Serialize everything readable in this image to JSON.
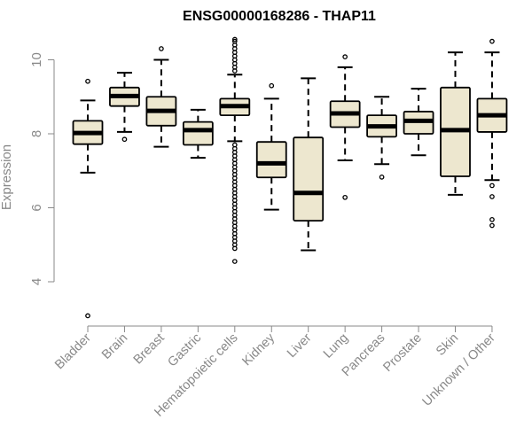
{
  "chart_data": {
    "type": "box",
    "title": "ENSG00000168286 - THAP11",
    "xlabel": "",
    "ylabel": "Expression",
    "ylim": [
      3,
      10.7
    ],
    "yticks": [
      4,
      6,
      8,
      10
    ],
    "grid": false,
    "colors": {
      "box_fill": "#EDE7CF",
      "stroke": "#000000",
      "axis_text": "#888888"
    },
    "categories": [
      "Bladder",
      "Brain",
      "Breast",
      "Gastric",
      "Hematopoietic cells",
      "Kidney",
      "Liver",
      "Lung",
      "Pancreas",
      "Prostate",
      "Skin",
      "Unknown / Other"
    ],
    "boxes": [
      {
        "category": "Bladder",
        "min": 6.95,
        "q1": 7.72,
        "median": 8.02,
        "q3": 8.35,
        "max": 8.9,
        "outliers": [
          9.42,
          3.08
        ]
      },
      {
        "category": "Brain",
        "min": 8.05,
        "q1": 8.75,
        "median": 9.02,
        "q3": 9.25,
        "max": 9.65,
        "outliers": [
          7.85
        ]
      },
      {
        "category": "Breast",
        "min": 7.65,
        "q1": 8.22,
        "median": 8.62,
        "q3": 9.0,
        "max": 10.0,
        "outliers": [
          10.3
        ]
      },
      {
        "category": "Gastric",
        "min": 7.35,
        "q1": 7.7,
        "median": 8.1,
        "q3": 8.32,
        "max": 8.65,
        "outliers": []
      },
      {
        "category": "Hematopoietic cells",
        "min": 7.8,
        "q1": 8.5,
        "median": 8.75,
        "q3": 8.95,
        "max": 9.6,
        "outliers": [
          9.7,
          9.8,
          9.9,
          10.0,
          10.1,
          10.2,
          10.3,
          10.4,
          10.5,
          10.55,
          7.7,
          7.6,
          7.5,
          7.4,
          7.3,
          7.2,
          7.1,
          7.0,
          6.9,
          6.8,
          6.7,
          6.6,
          6.5,
          6.4,
          6.3,
          6.2,
          6.1,
          6.0,
          5.9,
          5.8,
          5.7,
          5.6,
          5.5,
          5.4,
          5.3,
          5.2,
          5.1,
          5.0,
          4.9,
          4.55
        ]
      },
      {
        "category": "Kidney",
        "min": 5.95,
        "q1": 6.82,
        "median": 7.2,
        "q3": 7.78,
        "max": 8.95,
        "outliers": [
          9.3
        ]
      },
      {
        "category": "Liver",
        "min": 4.85,
        "q1": 5.65,
        "median": 6.4,
        "q3": 7.9,
        "max": 9.5,
        "outliers": []
      },
      {
        "category": "Lung",
        "min": 7.28,
        "q1": 8.18,
        "median": 8.55,
        "q3": 8.88,
        "max": 9.8,
        "outliers": [
          10.08,
          6.28
        ]
      },
      {
        "category": "Pancreas",
        "min": 7.18,
        "q1": 7.92,
        "median": 8.2,
        "q3": 8.5,
        "max": 9.0,
        "outliers": [
          6.83
        ]
      },
      {
        "category": "Prostate",
        "min": 7.42,
        "q1": 8.0,
        "median": 8.35,
        "q3": 8.6,
        "max": 9.22,
        "outliers": []
      },
      {
        "category": "Skin",
        "min": 6.35,
        "q1": 6.85,
        "median": 8.1,
        "q3": 9.25,
        "max": 10.2,
        "outliers": []
      },
      {
        "category": "Unknown / Other",
        "min": 6.75,
        "q1": 8.05,
        "median": 8.5,
        "q3": 8.95,
        "max": 10.2,
        "outliers": [
          10.5,
          6.6,
          6.3,
          5.68,
          5.52
        ]
      }
    ]
  }
}
